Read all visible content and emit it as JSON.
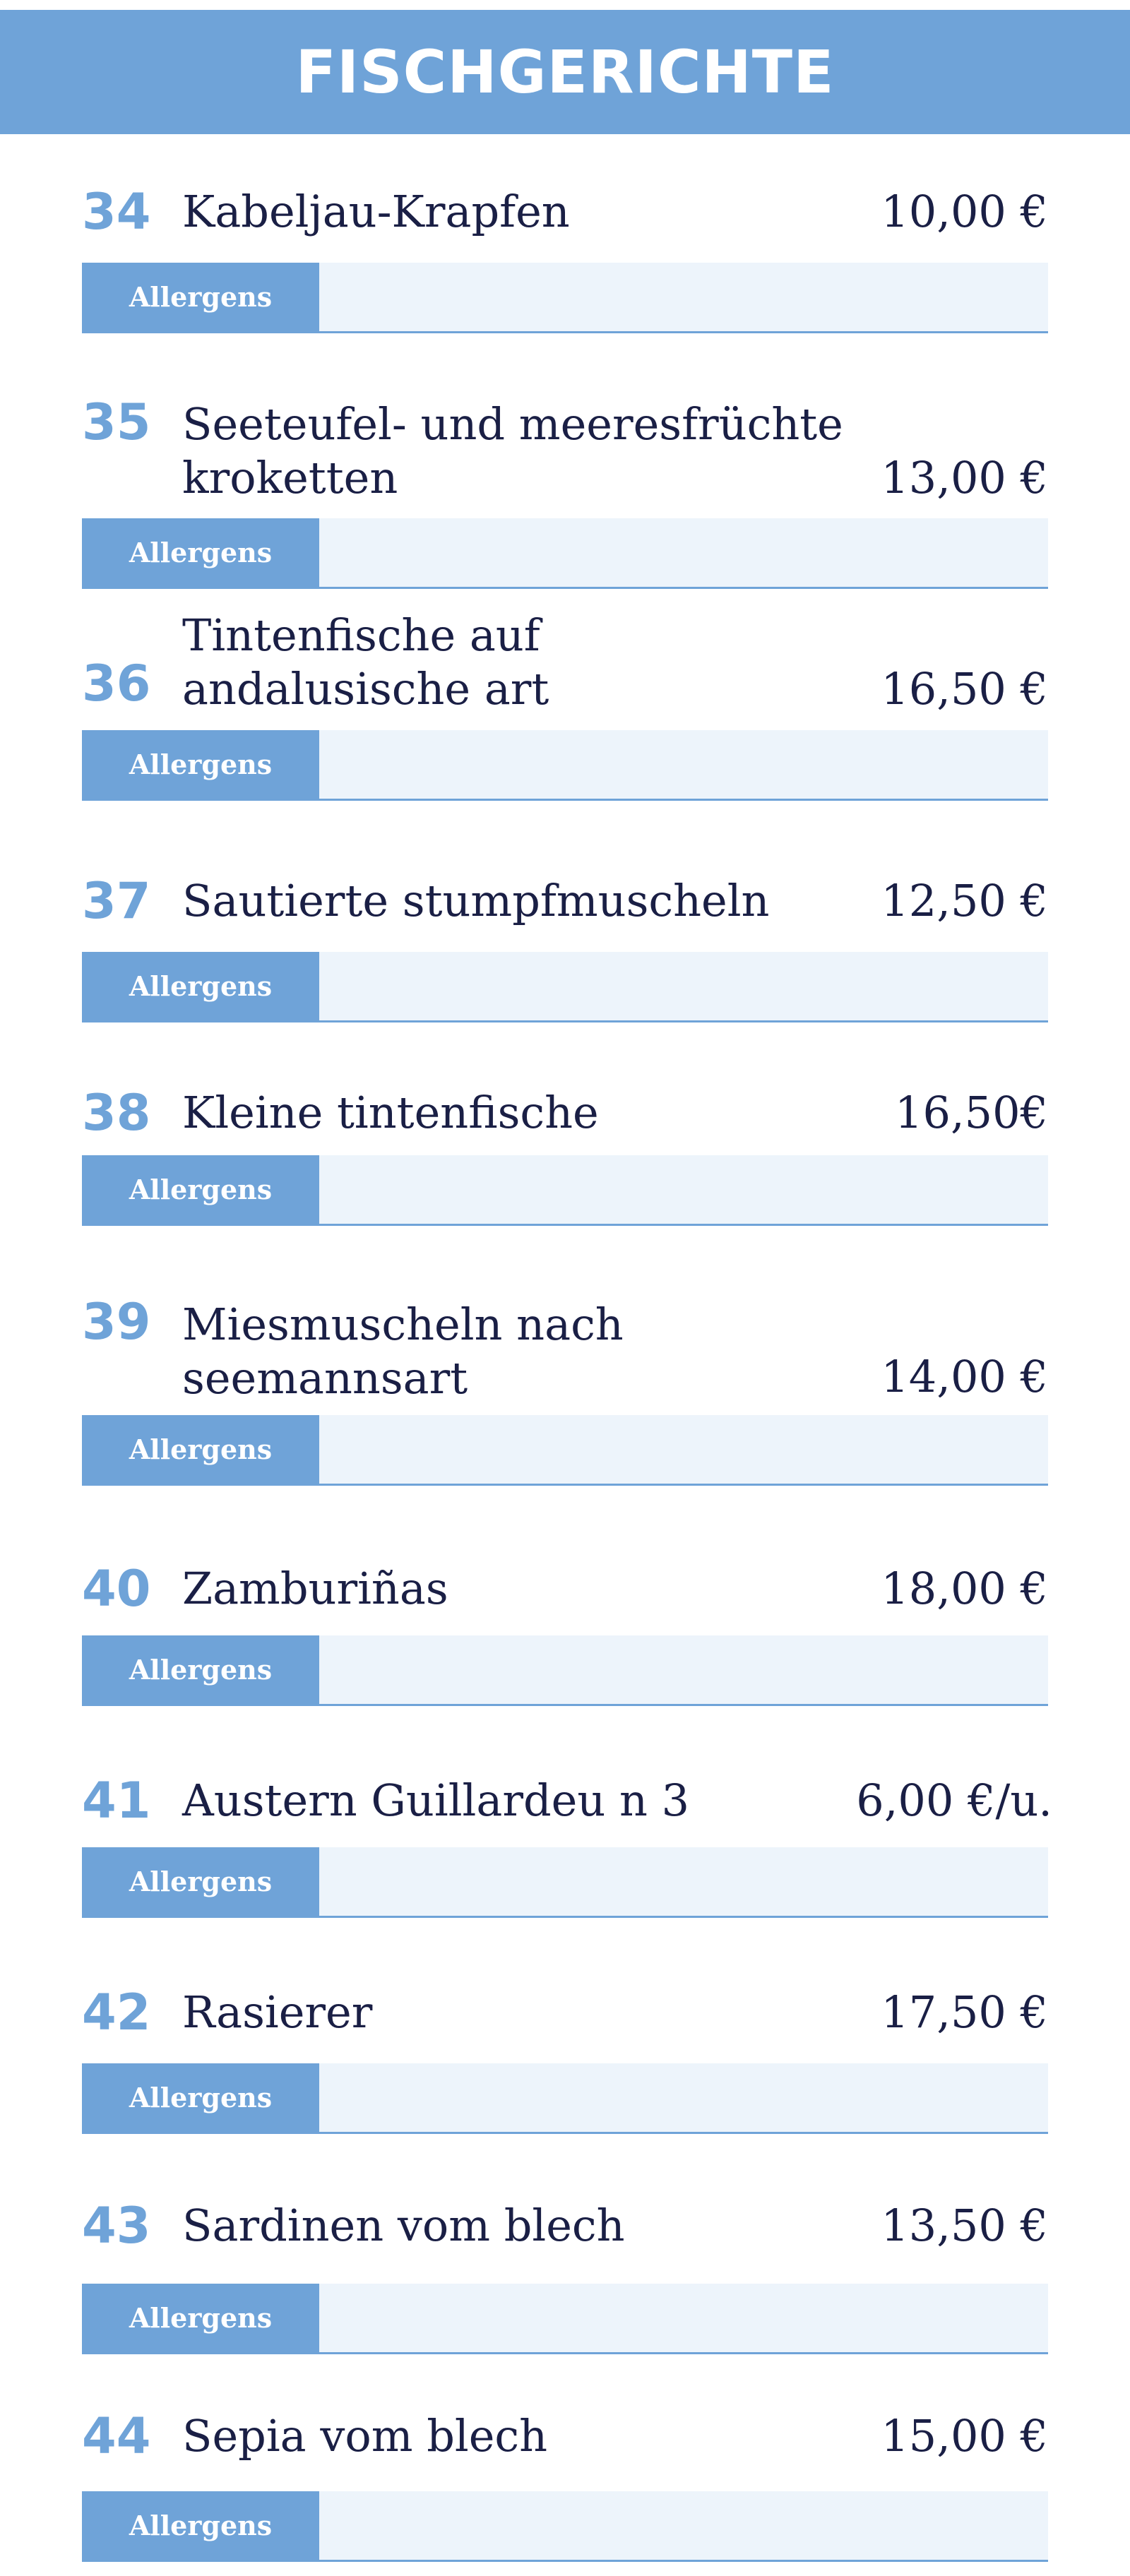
{
  "header": {
    "title": "FISCHGERICHTE"
  },
  "allergens_label": "Allergens",
  "items": [
    {
      "number": "34",
      "name": "Kabeljau-Krapfen",
      "price": "10,00 €"
    },
    {
      "number": "35",
      "name": "Seeteufel- und meeresfrüchte\nkroketten",
      "price": "13,00 €"
    },
    {
      "number": "36",
      "name": "Tintenfische auf\nandalusische art",
      "price": "16,50 €"
    },
    {
      "number": "37",
      "name": "Sautierte stumpfmuscheln",
      "price": "12,50 €"
    },
    {
      "number": "38",
      "name": "Kleine tintenfische",
      "price": "16,50€"
    },
    {
      "number": "39",
      "name": "Miesmuscheln nach\nseemannsart",
      "price": "14,00 €"
    },
    {
      "number": "40",
      "name": "Zamburiñas",
      "price": "18,00 €"
    },
    {
      "number": "41",
      "name": "Austern Guillardeu n 3",
      "price": "6,00 €/u."
    },
    {
      "number": "42",
      "name": "Rasierer",
      "price": "17,50 €"
    },
    {
      "number": "43",
      "name": "Sardinen vom blech",
      "price": "13,50 €"
    },
    {
      "number": "44",
      "name": "Sepia vom blech",
      "price": "15,00 €"
    }
  ]
}
